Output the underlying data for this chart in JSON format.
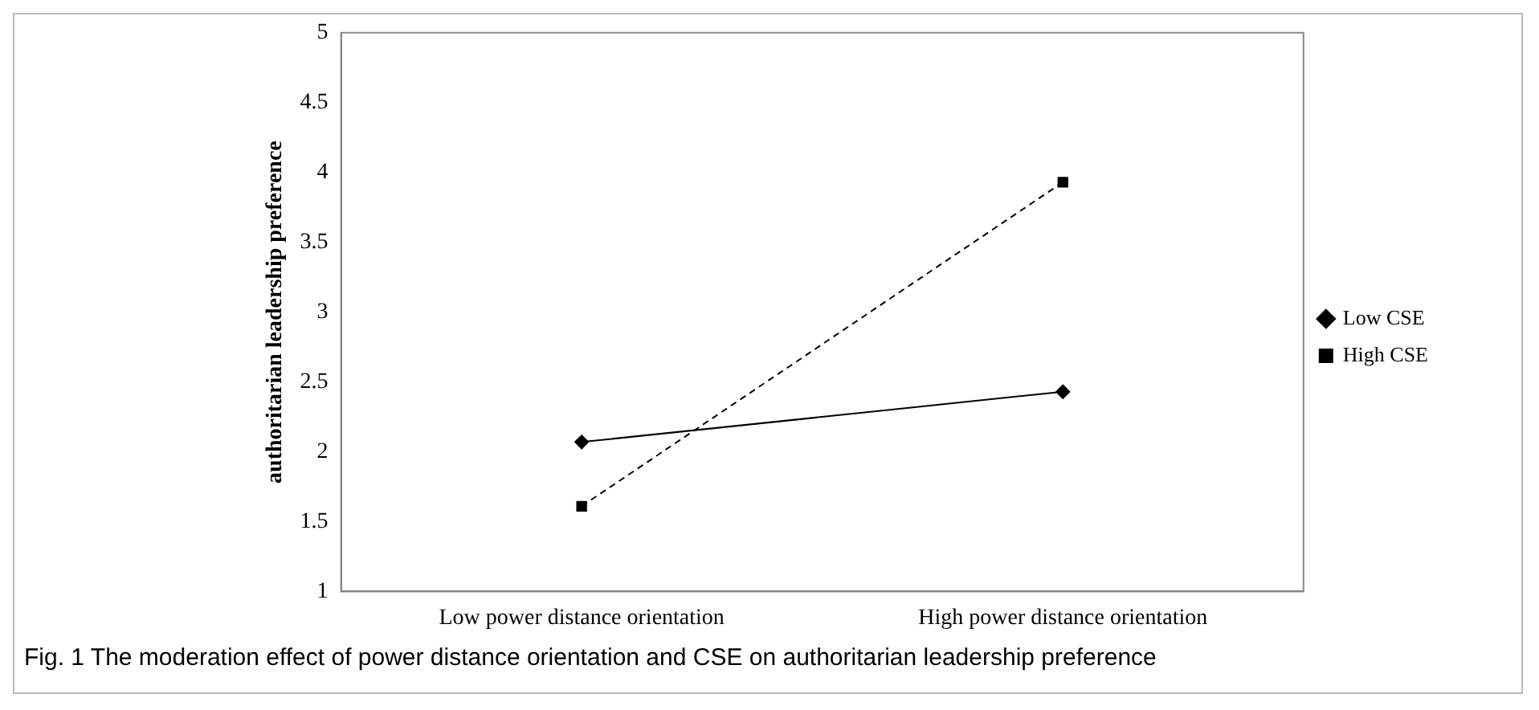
{
  "chart_data": {
    "type": "line",
    "ylabel": "authoritarian leadership preference",
    "categories": [
      "Low power distance orientation",
      "High power distance orientation"
    ],
    "series": [
      {
        "name": "Low CSE",
        "color": "#000000",
        "values": [
          2.07,
          2.43
        ],
        "marker": "diamond",
        "line_style": "solid"
      },
      {
        "name": "High CSE",
        "color": "#000000",
        "values": [
          1.61,
          3.93
        ],
        "marker": "square",
        "line_style": "dashed"
      }
    ],
    "ylim": [
      1,
      5
    ],
    "yticks": [
      1,
      1.5,
      2,
      2.5,
      3,
      3.5,
      4,
      4.5,
      5
    ],
    "grid": false,
    "legend": "right",
    "annotations": [
      "Fig. 1 The moderation effect of power distance orientation and CSE on authoritarian leadership preference"
    ]
  }
}
